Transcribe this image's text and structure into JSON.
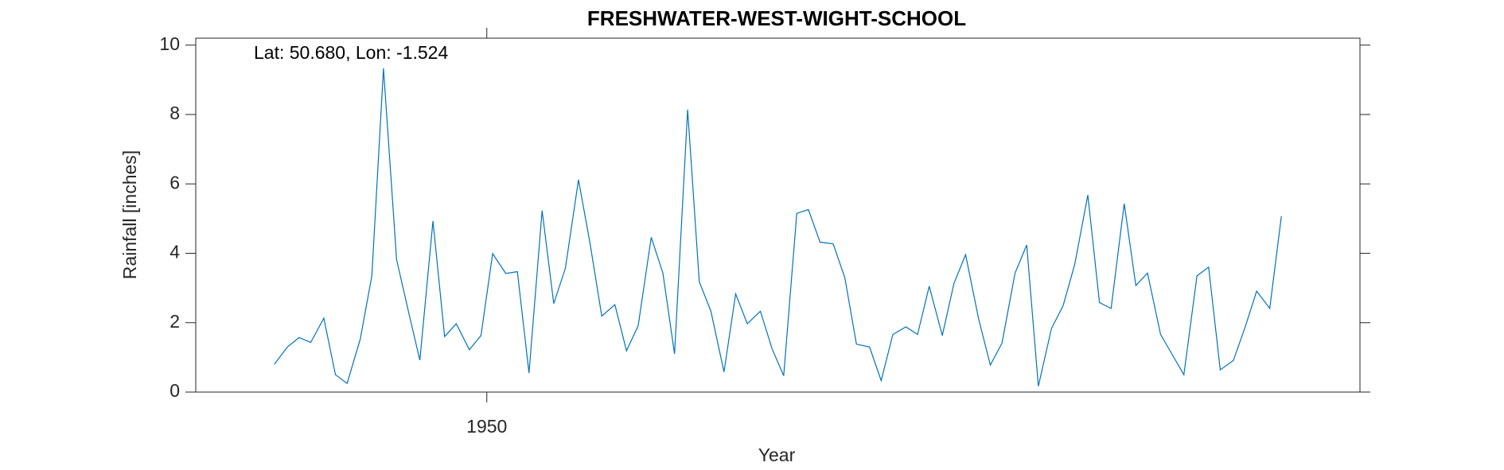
{
  "chart_data": {
    "type": "line",
    "title": "FRESHWATER-WEST-WIGHT-SCHOOL",
    "annotation": "Lat: 50.680, Lon: -1.524",
    "x_label": "Year",
    "y_label": "Rainfall [inches]",
    "color": "#0072bd",
    "x": [
      1948.54,
      1948.63,
      1948.71,
      1948.79,
      1948.88,
      1948.96,
      1949.04,
      1949.13,
      1949.21,
      1949.29,
      1949.38,
      1949.46,
      1949.54,
      1949.63,
      1949.71,
      1949.79,
      1949.88,
      1949.96,
      1950.04,
      1950.13,
      1950.21,
      1950.29,
      1950.38,
      1950.46,
      1950.54,
      1950.63,
      1950.71,
      1950.79,
      1950.88,
      1950.96,
      1951.04,
      1951.13,
      1951.21,
      1951.29,
      1951.38,
      1951.46,
      1951.54,
      1951.63,
      1951.71,
      1951.79,
      1951.88,
      1951.96,
      1952.04,
      1952.13,
      1952.21,
      1952.29,
      1952.38,
      1952.46,
      1952.54,
      1952.63,
      1952.71,
      1952.79,
      1952.88,
      1952.96,
      1953.04,
      1953.13,
      1953.21,
      1953.29,
      1953.38,
      1953.46,
      1953.54,
      1953.63,
      1953.71,
      1953.79,
      1953.88,
      1953.96,
      1954.04,
      1954.13,
      1954.21,
      1954.29,
      1954.38,
      1954.46,
      1954.54,
      1954.63,
      1954.71,
      1954.79,
      1954.88,
      1954.96,
      1955.04,
      1955.13,
      1955.21,
      1955.29,
      1955.38,
      1955.46
    ],
    "values": [
      0.8,
      1.3,
      1.57,
      1.43,
      2.13,
      0.5,
      0.25,
      1.52,
      3.35,
      9.33,
      3.82,
      2.35,
      0.92,
      4.93,
      1.6,
      1.97,
      1.22,
      1.63,
      3.99,
      3.42,
      3.47,
      0.55,
      5.23,
      2.55,
      3.57,
      6.12,
      4.27,
      2.19,
      2.52,
      1.19,
      1.91,
      4.46,
      3.43,
      1.1,
      8.14,
      3.18,
      2.33,
      0.58,
      2.83,
      1.97,
      2.33,
      1.25,
      0.47,
      5.15,
      5.26,
      4.32,
      4.27,
      3.3,
      1.38,
      1.3,
      0.33,
      1.66,
      1.88,
      1.66,
      3.05,
      1.63,
      3.13,
      3.96,
      2.1,
      0.78,
      1.41,
      3.43,
      4.24,
      0.17,
      1.83,
      2.49,
      3.68,
      5.68,
      2.58,
      2.41,
      5.43,
      3.07,
      3.43,
      1.66,
      1.08,
      0.5,
      3.35,
      3.6,
      0.64,
      0.91,
      1.86,
      2.91,
      2.41,
      5.07
    ],
    "xlim": [
      1948,
      1956
    ],
    "xticks": [
      1950
    ],
    "ylim": [
      0,
      10.2
    ],
    "yticks": [
      0,
      2,
      4,
      6,
      8,
      10
    ]
  }
}
